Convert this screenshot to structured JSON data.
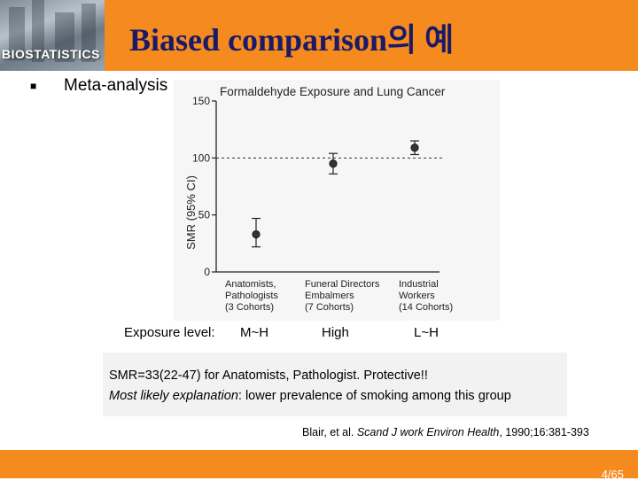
{
  "header": {
    "title": "Biased comparison의 예",
    "logo_text": "BIOSTATISTICS"
  },
  "bullet": {
    "label": "Meta-analysis"
  },
  "chart_data": {
    "type": "scatter",
    "title": "Formaldehyde Exposure and Lung Cancer",
    "ylabel": "SMR (95% CI)",
    "xlabel": "",
    "ylim": [
      0,
      150
    ],
    "yticks": [
      0,
      50,
      100,
      150
    ],
    "reference_line": 100,
    "grid": false,
    "categories": [
      [
        "Anatomists,",
        "Pathologists",
        "(3 Cohorts)"
      ],
      [
        "Funeral Directors",
        "Embalmers",
        "(7 Cohorts)"
      ],
      [
        "Industrial",
        "Workers",
        "(14 Cohorts)"
      ]
    ],
    "points": [
      {
        "value": 33,
        "ci_low": 22,
        "ci_high": 47
      },
      {
        "value": 95,
        "ci_low": 86,
        "ci_high": 104
      },
      {
        "value": 109,
        "ci_low": 103,
        "ci_high": 115
      }
    ]
  },
  "exposure": {
    "label": "Exposure level:",
    "levels": [
      "M~H",
      "High",
      "L~H"
    ]
  },
  "notes": {
    "line1": "SMR=33(22-47) for Anatomists, Pathologist. Protective!!",
    "line2_italic": "Most likely explanation",
    "line2_rest": ": lower prevalence of smoking among this group"
  },
  "citation": {
    "authors": "Blair, et al. ",
    "journal": "Scand J work Environ Health",
    "rest": ", 1990;16:381-393"
  },
  "footer": {
    "page": "4/65"
  },
  "colors": {
    "accent": "#f58a1f",
    "title": "#1a1a66",
    "chart_ink": "#222222"
  }
}
